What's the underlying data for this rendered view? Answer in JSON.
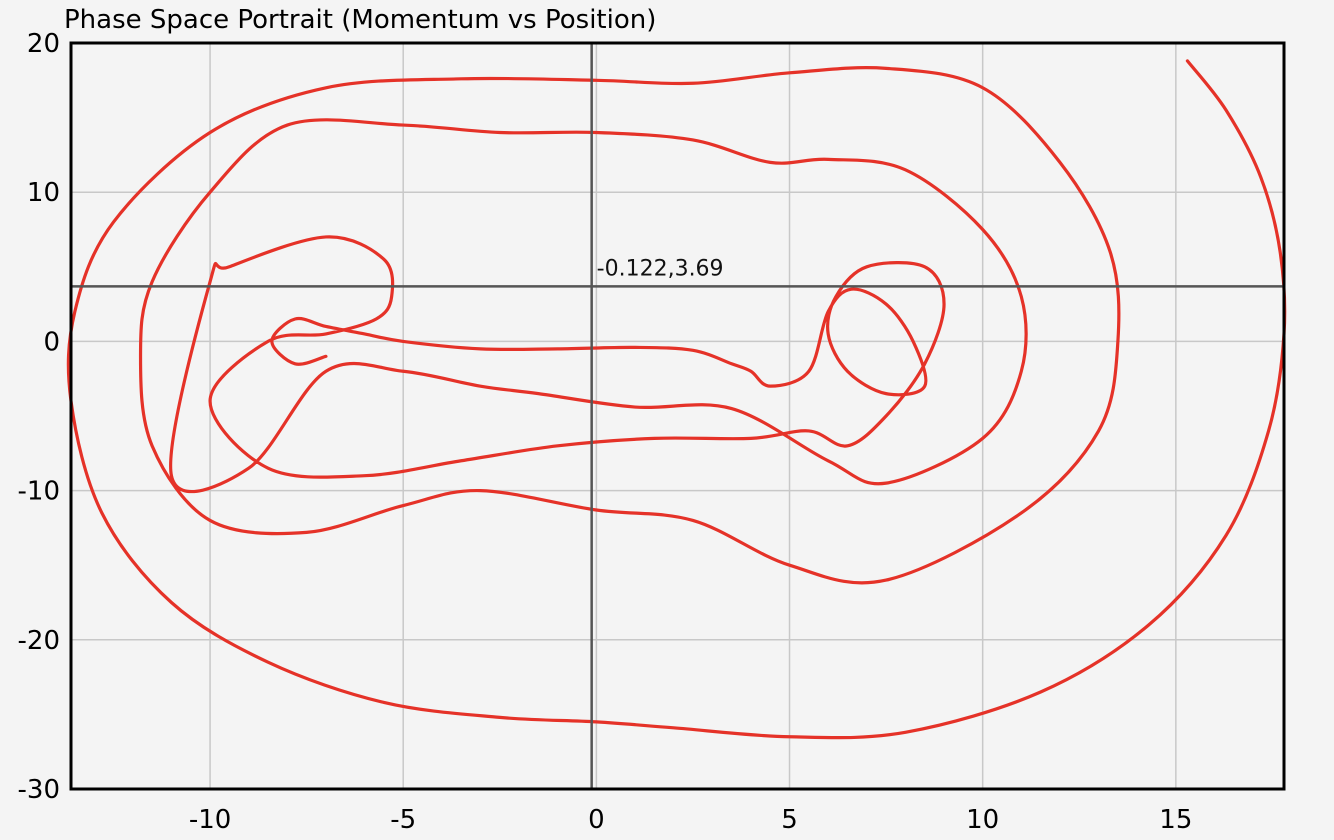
{
  "chart_data": {
    "type": "line",
    "title": "Phase Space Portrait (Momentum vs Position)",
    "xlabel": "",
    "ylabel": "",
    "xlim": [
      -13.6,
      17.8
    ],
    "ylim": [
      -30,
      20
    ],
    "x_ticks": [
      -10,
      -5,
      0,
      5,
      10,
      15
    ],
    "y_ticks": [
      -30,
      -20,
      -10,
      0,
      10,
      20
    ],
    "x_tick_labels": [
      "-10",
      "-5",
      "0",
      "5",
      "10",
      "15"
    ],
    "y_tick_labels": [
      "-30",
      "-20",
      "-10",
      "0",
      "10",
      "20"
    ],
    "grid": true,
    "legend": "none",
    "series_color": "#e53228",
    "crosshair": {
      "x": -0.122,
      "y": 3.69,
      "label": "-0.122,3.69"
    },
    "series": [
      {
        "points": [
          [
            15.3,
            18.8
          ],
          [
            16.3,
            15.5
          ],
          [
            17.2,
            11.0
          ],
          [
            17.7,
            6.0
          ],
          [
            17.8,
            0.5
          ],
          [
            17.4,
            -6.0
          ],
          [
            16.3,
            -13.0
          ],
          [
            14.3,
            -19.0
          ],
          [
            11.5,
            -23.5
          ],
          [
            8.0,
            -26.2
          ],
          [
            5.0,
            -26.5
          ],
          [
            2.0,
            -25.9
          ],
          [
            0.0,
            -25.5
          ],
          [
            -2.5,
            -25.2
          ],
          [
            -5.5,
            -24.2
          ],
          [
            -8.5,
            -21.5
          ],
          [
            -11.0,
            -17.5
          ],
          [
            -12.8,
            -11.5
          ],
          [
            -13.6,
            -4.0
          ],
          [
            -13.5,
            2.0
          ],
          [
            -12.5,
            8.0
          ],
          [
            -10.0,
            14.0
          ],
          [
            -7.0,
            17.0
          ],
          [
            -3.5,
            17.6
          ],
          [
            0.0,
            17.5
          ],
          [
            2.5,
            17.3
          ],
          [
            5.0,
            18.0
          ],
          [
            7.5,
            18.3
          ],
          [
            10.0,
            17.0
          ],
          [
            12.0,
            12.0
          ],
          [
            13.3,
            6.0
          ],
          [
            13.5,
            0.0
          ],
          [
            13.0,
            -6.0
          ],
          [
            11.0,
            -11.5
          ],
          [
            7.5,
            -16.0
          ],
          [
            5.0,
            -15.0
          ],
          [
            2.5,
            -12.0
          ],
          [
            0.0,
            -11.3
          ],
          [
            -3.0,
            -10.0
          ],
          [
            -5.0,
            -11.0
          ],
          [
            -7.5,
            -12.8
          ],
          [
            -10.0,
            -12.0
          ],
          [
            -11.5,
            -7.0
          ],
          [
            -11.8,
            -1.0
          ],
          [
            -11.5,
            4.0
          ],
          [
            -10.0,
            10.0
          ],
          [
            -8.0,
            14.5
          ],
          [
            -5.0,
            14.5
          ],
          [
            -2.5,
            14.0
          ],
          [
            0.0,
            14.0
          ],
          [
            2.5,
            13.5
          ],
          [
            4.5,
            12.0
          ],
          [
            6.0,
            12.2
          ],
          [
            8.0,
            11.5
          ],
          [
            10.0,
            7.5
          ],
          [
            11.0,
            3.0
          ],
          [
            11.0,
            -2.0
          ],
          [
            10.0,
            -6.5
          ],
          [
            7.5,
            -9.5
          ],
          [
            6.0,
            -8.0
          ],
          [
            3.5,
            -4.5
          ],
          [
            1.0,
            -4.4
          ],
          [
            -1.5,
            -3.5
          ],
          [
            -3.0,
            -3.0
          ],
          [
            -5.0,
            -2.0
          ],
          [
            -7.0,
            -2.0
          ],
          [
            -9.0,
            -8.5
          ],
          [
            -11.0,
            -9.0
          ],
          [
            -10.0,
            4.0
          ],
          [
            -9.5,
            5.0
          ],
          [
            -7.0,
            7.0
          ],
          [
            -5.5,
            5.5
          ],
          [
            -5.3,
            3.0
          ],
          [
            -5.7,
            1.5
          ],
          [
            -7.0,
            0.5
          ],
          [
            -8.5,
            0.0
          ],
          [
            -10.0,
            -4.0
          ],
          [
            -8.5,
            -8.5
          ],
          [
            -6.0,
            -9.0
          ],
          [
            -3.5,
            -8.0
          ],
          [
            -1.0,
            -7.0
          ],
          [
            1.5,
            -6.5
          ],
          [
            4.0,
            -6.5
          ],
          [
            5.5,
            -6.0
          ],
          [
            6.5,
            -7.0
          ],
          [
            7.5,
            -5.0
          ],
          [
            8.5,
            -1.5
          ],
          [
            9.0,
            2.5
          ],
          [
            8.5,
            5.0
          ],
          [
            7.0,
            5.0
          ],
          [
            6.2,
            3.0
          ],
          [
            6.0,
            0.5
          ],
          [
            6.5,
            -2.0
          ],
          [
            7.5,
            -3.5
          ],
          [
            8.5,
            -3.0
          ],
          [
            8.2,
            0.0
          ],
          [
            7.5,
            2.5
          ],
          [
            6.6,
            3.5
          ],
          [
            6.0,
            2.0
          ],
          [
            5.5,
            -2.0
          ],
          [
            4.5,
            -3.0
          ],
          [
            4.0,
            -2.0
          ],
          [
            3.5,
            -1.5
          ],
          [
            2.5,
            -0.6
          ],
          [
            1.0,
            -0.4
          ],
          [
            -1.0,
            -0.5
          ],
          [
            -3.0,
            -0.5
          ],
          [
            -5.0,
            0.0
          ],
          [
            -6.0,
            0.5
          ],
          [
            -7.0,
            1.0
          ],
          [
            -7.8,
            1.5
          ],
          [
            -8.4,
            0.0
          ],
          [
            -7.8,
            -1.5
          ],
          [
            -7.0,
            -1.0
          ]
        ]
      }
    ]
  }
}
